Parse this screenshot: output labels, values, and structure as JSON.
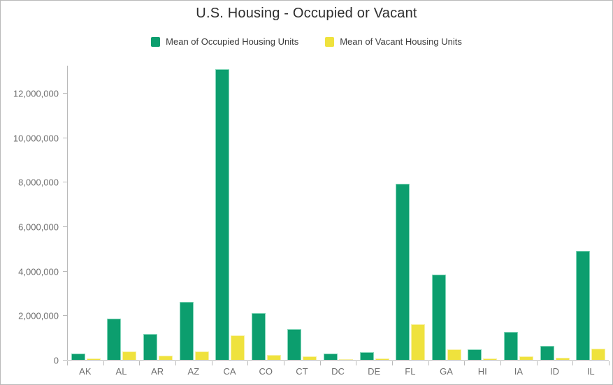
{
  "chart": {
    "title": "U.S. Housing - Occupied or Vacant"
  },
  "colors": {
    "occupied": "#0c9e6e",
    "occupied_edge": "#84d7ba",
    "vacant": "#efe23d",
    "vacant_edge": "#f7f0a4",
    "axis_line": "#b9b9b9",
    "axis_text": "#6f6f6f",
    "title_text": "#2e2e2e",
    "background": "#ffffff"
  },
  "chart_data": {
    "type": "bar",
    "title": "U.S. Housing - Occupied or Vacant",
    "xlabel": "",
    "ylabel": "",
    "grid": false,
    "legend_position": "top",
    "ylim": [
      0,
      13250000
    ],
    "yticks": [
      0,
      2000000,
      4000000,
      6000000,
      8000000,
      10000000,
      12000000
    ],
    "ytick_labels": [
      "0",
      "2,000,000",
      "4,000,000",
      "6,000,000",
      "8,000,000",
      "10,000,000",
      "12,000,000"
    ],
    "categories": [
      "AK",
      "AL",
      "AR",
      "AZ",
      "CA",
      "CO",
      "CT",
      "DC",
      "DE",
      "FL",
      "GA",
      "HI",
      "IA",
      "ID",
      "IL"
    ],
    "series": [
      {
        "name": "Mean of Occupied Housing Units",
        "key": "occupied",
        "color": "#0c9e6e",
        "edge_color": "#84d7ba",
        "values": [
          270000,
          1850000,
          1150000,
          2600000,
          13050000,
          2090000,
          1370000,
          280000,
          360000,
          7920000,
          3820000,
          460000,
          1260000,
          620000,
          4900000
        ]
      },
      {
        "name": "Mean of Vacant Housing Units",
        "key": "vacant",
        "color": "#efe23d",
        "edge_color": "#f7f0a4",
        "values": [
          75000,
          370000,
          195000,
          380000,
          1090000,
          210000,
          145000,
          35000,
          70000,
          1600000,
          480000,
          70000,
          145000,
          85000,
          490000
        ]
      }
    ]
  }
}
